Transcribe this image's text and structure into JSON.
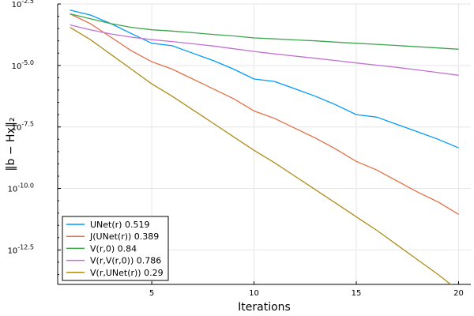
{
  "chart_data": {
    "type": "line",
    "xlabel": "Iterations",
    "ylabel": "‖b − Hx‖₂",
    "xlim": [
      0.4,
      20.6
    ],
    "ylim": [
      -13.9,
      -2.5
    ],
    "y_scale": "log10",
    "x_ticks": [
      5,
      10,
      15,
      20
    ],
    "y_ticks": [
      -2.5,
      -5.0,
      -7.5,
      -10.0,
      -12.5
    ],
    "y_tick_labels": [
      "-2.5",
      "-5.0",
      "-7.5",
      "-10.0",
      "-12.5"
    ],
    "y_tick_base": "10",
    "grid": true,
    "legend_position": "bottom-left",
    "x": [
      1,
      2,
      3,
      4,
      5,
      6,
      7,
      8,
      9,
      10,
      11,
      12,
      13,
      14,
      15,
      16,
      17,
      18,
      19,
      20
    ],
    "series": [
      {
        "name": "UNet(r) 0.519",
        "color": "#009AF9",
        "values": [
          -2.75,
          -2.95,
          -3.3,
          -3.7,
          -4.1,
          -4.2,
          -4.5,
          -4.8,
          -5.15,
          -5.55,
          -5.65,
          -5.95,
          -6.25,
          -6.6,
          -7.0,
          -7.1,
          -7.4,
          -7.7,
          -8.0,
          -8.35
        ]
      },
      {
        "name": "J(UNet(r)) 0.389",
        "color": "#E26F46",
        "values": [
          -2.9,
          -3.3,
          -3.85,
          -4.4,
          -4.85,
          -5.15,
          -5.55,
          -5.95,
          -6.35,
          -6.85,
          -7.15,
          -7.55,
          -7.95,
          -8.4,
          -8.9,
          -9.25,
          -9.7,
          -10.15,
          -10.55,
          -11.05
        ]
      },
      {
        "name": "V(r,0) 0.84",
        "color": "#3DA44D",
        "values": [
          -2.9,
          -3.1,
          -3.3,
          -3.45,
          -3.55,
          -3.6,
          -3.67,
          -3.74,
          -3.8,
          -3.88,
          -3.92,
          -3.96,
          -4.0,
          -4.05,
          -4.1,
          -4.14,
          -4.19,
          -4.24,
          -4.29,
          -4.34
        ]
      },
      {
        "name": "V(r,V(r,0)) 0.786",
        "color": "#C271D2",
        "values": [
          -3.35,
          -3.55,
          -3.72,
          -3.85,
          -3.95,
          -4.03,
          -4.12,
          -4.21,
          -4.32,
          -4.43,
          -4.53,
          -4.62,
          -4.71,
          -4.8,
          -4.9,
          -4.99,
          -5.08,
          -5.18,
          -5.29,
          -5.4
        ]
      },
      {
        "name": "V(r,UNet(r)) 0.29",
        "color": "#AC8D18",
        "values": [
          -3.45,
          -3.95,
          -4.55,
          -5.15,
          -5.75,
          -6.25,
          -6.8,
          -7.35,
          -7.9,
          -8.45,
          -8.95,
          -9.5,
          -10.05,
          -10.6,
          -11.15,
          -11.7,
          -12.3,
          -12.9,
          -13.5,
          -14.15
        ]
      }
    ]
  }
}
